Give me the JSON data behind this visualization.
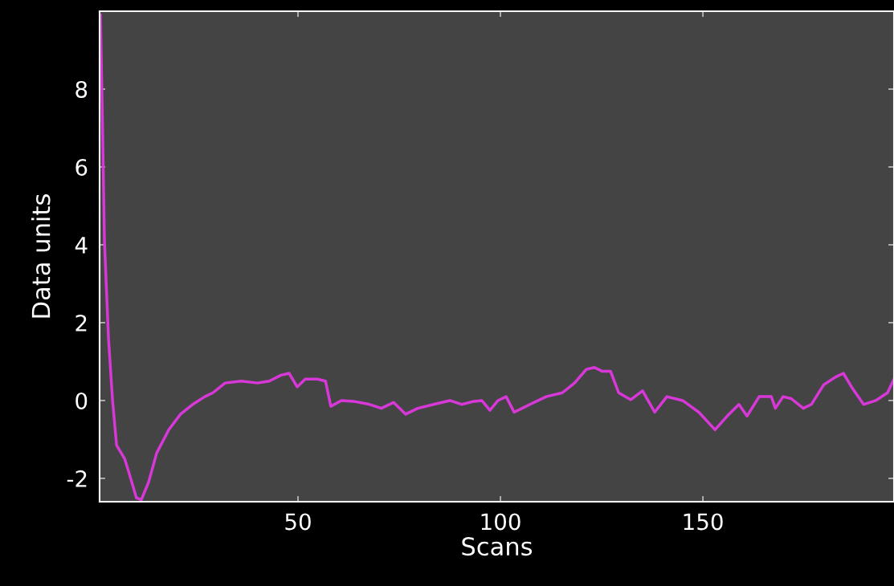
{
  "chart_data": {
    "type": "line",
    "xlabel": "Scans",
    "ylabel": "Data units",
    "xlim": [
      1,
      197.2
    ],
    "xticks": [
      50,
      100,
      150
    ],
    "ylim": [
      -2.6,
      10
    ],
    "yticks": [
      -2,
      0,
      2,
      4,
      6,
      8
    ],
    "grid": false,
    "marker": "none",
    "line_style": "solid",
    "series": [
      {
        "color": "#d838d8",
        "x": [
          1.2,
          1.6,
          2.2,
          3.2,
          4.2,
          5.2,
          7.2,
          8.1,
          10.1,
          11.3,
          13.1,
          15.1,
          18.1,
          21,
          24,
          27,
          29,
          32,
          36,
          40,
          42.9,
          45.8,
          47.8,
          49.8,
          51.8,
          54.8,
          56.8,
          58.1,
          60.7,
          63.7,
          67.7,
          70.6,
          73.6,
          76.6,
          79.6,
          83.5,
          87.5,
          90.5,
          93.5,
          95.4,
          97.4,
          99.4,
          101.4,
          103.4,
          107.3,
          111.3,
          115.3,
          118.3,
          121.2,
          123.2,
          125.2,
          127.2,
          129.2,
          132.2,
          135.1,
          138.1,
          141.1,
          145,
          149,
          153,
          156,
          158.9,
          160.9,
          163.9,
          166.9,
          167.9,
          169.8,
          171.8,
          174.8,
          176.8,
          179.8,
          182.7,
          184.7,
          186.7,
          189.7,
          192.7,
          195.6,
          197.2
        ],
        "values": [
          9.9,
          7.8,
          4.1,
          1.6,
          0,
          -1.15,
          -1.5,
          -1.8,
          -2.5,
          -2.55,
          -2.1,
          -1.35,
          -0.75,
          -0.35,
          -0.1,
          0.1,
          0.2,
          0.45,
          0.5,
          0.45,
          0.5,
          0.65,
          0.7,
          0.35,
          0.55,
          0.55,
          0.5,
          -0.15,
          0,
          -0.02,
          -0.1,
          -0.2,
          -0.05,
          -0.35,
          -0.2,
          -0.1,
          0,
          -0.1,
          -0.02,
          0,
          -0.25,
          0,
          0.1,
          -0.3,
          -0.1,
          0.1,
          0.2,
          0.45,
          0.8,
          0.85,
          0.75,
          0.75,
          0.2,
          0.02,
          0.25,
          -0.3,
          0.1,
          0,
          -0.3,
          -0.75,
          -0.4,
          -0.1,
          -0.4,
          0.1,
          0.1,
          -0.2,
          0.1,
          0.05,
          -0.2,
          -0.1,
          0.4,
          0.6,
          0.7,
          0.35,
          -0.1,
          0,
          0.2,
          0.55
        ]
      }
    ]
  }
}
